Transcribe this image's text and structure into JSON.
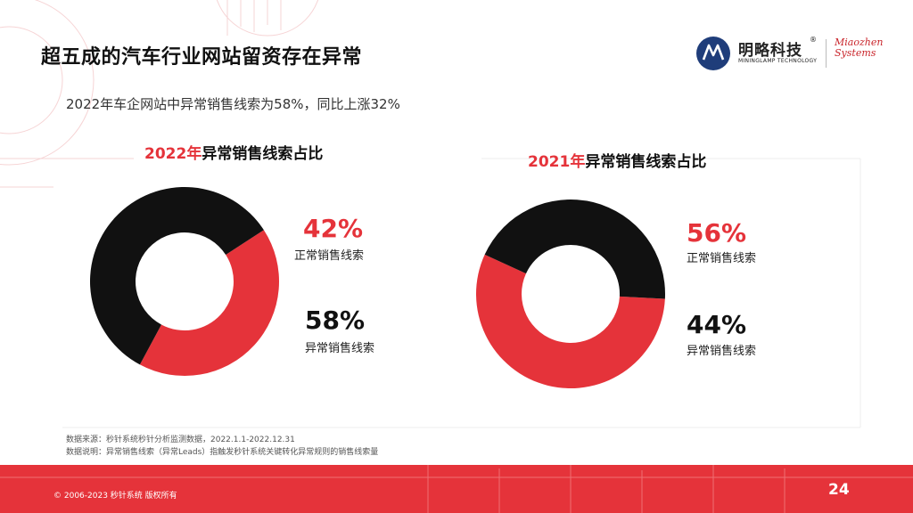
{
  "slide": {
    "title": "超五成的汽车行业网站留资存在异常",
    "subtitle": "2022年车企网站中异常销售线索为58%，同比上涨32%"
  },
  "logo": {
    "cn": "明略科技",
    "reg": "®",
    "en": "MININGLAMP TECHNOLOGY",
    "mz_line1": "Miaozhen",
    "mz_line2": "Systems"
  },
  "charts": {
    "left": {
      "year": "2022年",
      "title_rest": "异常销售线索占比",
      "red_pct": "42%",
      "red_label": "正常销售线索",
      "dark_pct": "58%",
      "dark_label": "异常销售线索"
    },
    "right": {
      "year": "2021年",
      "title_rest": "异常销售线索占比",
      "red_pct": "56%",
      "red_label": "正常销售线索",
      "dark_pct": "44%",
      "dark_label": "异常销售线索"
    }
  },
  "chart_data": [
    {
      "type": "pie",
      "title": "2022年异常销售线索占比",
      "slices": [
        {
          "label": "正常销售线索",
          "value": 42,
          "color": "#e5333a"
        },
        {
          "label": "异常销售线索",
          "value": 58,
          "color": "#111111"
        }
      ]
    },
    {
      "type": "pie",
      "title": "2021年异常销售线索占比",
      "slices": [
        {
          "label": "正常销售线索",
          "value": 56,
          "color": "#e5333a"
        },
        {
          "label": "异常销售线索",
          "value": 44,
          "color": "#111111"
        }
      ]
    }
  ],
  "notes": {
    "source": "数据来源：秒针系统秒针分析监测数据，2022.1.1-2022.12.31",
    "definition": "数据说明：异常销售线索（异常Leads）指触发秒针系统关键转化异常规则的销售线索量"
  },
  "footer": {
    "copyright": "© 2006-2023 秒针系统 版权所有",
    "page": "24"
  },
  "colors": {
    "accent": "#e5333a",
    "dark": "#111111"
  }
}
